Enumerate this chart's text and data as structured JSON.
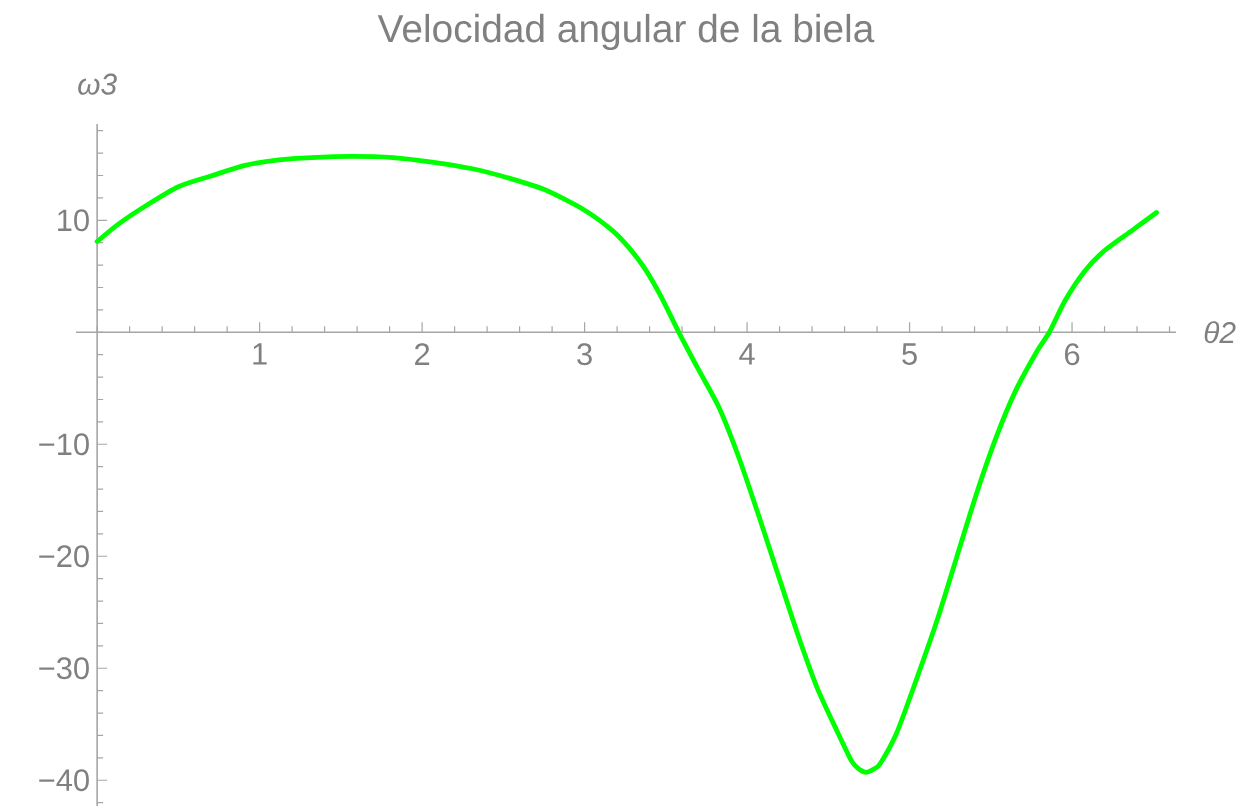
{
  "chart_data": {
    "type": "line",
    "title": "Velocidad angular de la biela",
    "xlabel": "*θ2*",
    "ylabel": "*ω3*",
    "x": [
      0,
      0.135,
      0.3,
      0.5,
      0.71,
      0.91,
      1.12,
      1.32,
      1.57,
      1.82,
      2.06,
      2.31,
      2.55,
      2.76,
      3.0,
      3.17,
      3.27,
      3.37,
      3.47,
      3.58,
      3.7,
      3.83,
      3.95,
      4.07,
      4.19,
      4.31,
      4.43,
      4.56,
      4.64,
      4.68,
      4.73,
      4.78,
      4.82,
      4.92,
      5.04,
      5.17,
      5.29,
      5.41,
      5.53,
      5.65,
      5.78,
      5.86,
      5.96,
      6.08,
      6.2,
      6.37,
      6.52
    ],
    "series": [
      {
        "color": "#00ff00",
        "values": [
          8.1,
          9.7,
          11.3,
          13.0,
          14.0,
          14.9,
          15.4,
          15.6,
          15.7,
          15.6,
          15.2,
          14.6,
          13.7,
          12.7,
          10.9,
          9.1,
          7.6,
          5.7,
          3.2,
          0,
          -3.3,
          -6.8,
          -11.2,
          -16.3,
          -21.6,
          -26.9,
          -31.7,
          -35.8,
          -38.2,
          -38.9,
          -39.3,
          -39.0,
          -38.5,
          -35.8,
          -31.1,
          -25.7,
          -20.1,
          -14.5,
          -9.5,
          -5.3,
          -1.8,
          0,
          2.9,
          5.5,
          7.3,
          9.1,
          10.7
        ]
      }
    ],
    "xlim": [
      -0.13,
      6.64
    ],
    "ylim": [
      -42.3,
      18.6
    ],
    "xticks": [
      1,
      2,
      3,
      4,
      5,
      6
    ],
    "yticks": [
      {
        "value": -40,
        "label": "−40"
      },
      {
        "value": -30,
        "label": "−30"
      },
      {
        "value": -20,
        "label": "−20"
      },
      {
        "value": -10,
        "label": "−10"
      },
      10
    ],
    "line_style": "solid"
  }
}
